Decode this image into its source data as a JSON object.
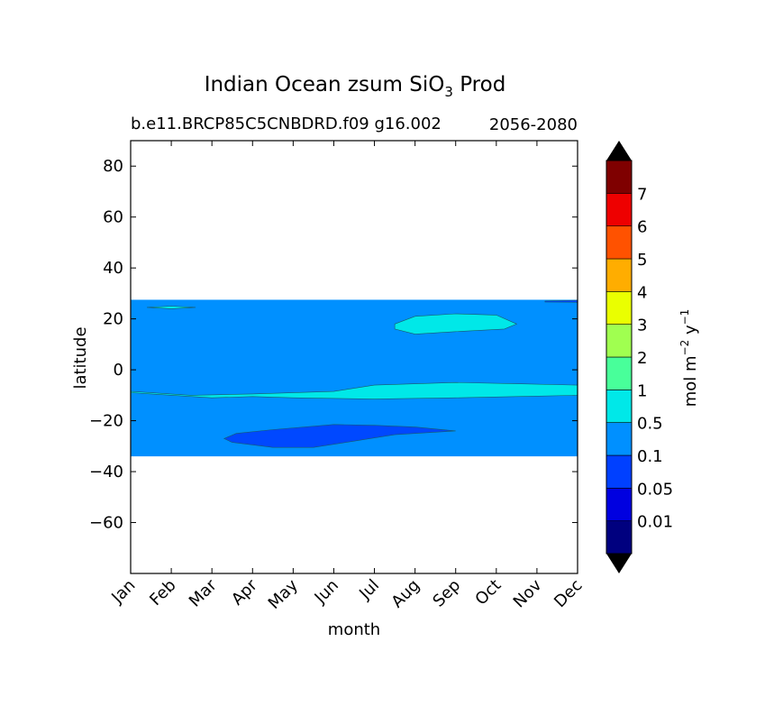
{
  "chart_data": {
    "type": "heatmap",
    "title": "Indian Ocean zsum SiO",
    "title_sub": "3",
    "title_rest": " Prod",
    "subtitle_left": "b.e11.BRCP85C5CNBDRD.f09 g16.002",
    "subtitle_right": "2056-2080",
    "xlabel": "month",
    "ylabel": "latitude",
    "x_ticks": [
      "Jan",
      "Feb",
      "Mar",
      "Apr",
      "May",
      "Jun",
      "Jul",
      "Aug",
      "Sep",
      "Oct",
      "Nov",
      "Dec"
    ],
    "xlim": [
      1,
      12
    ],
    "ylim": [
      -80,
      90
    ],
    "y_ticks": [
      80,
      60,
      40,
      20,
      0,
      -20,
      -40,
      -60
    ],
    "y_tick_labels": [
      "80",
      "60",
      "40",
      "20",
      "0",
      "−20",
      "−40",
      "−60"
    ],
    "grid": false,
    "data_lat_range": [
      -34,
      27.5
    ],
    "background_value": "0.1–0.5",
    "regions": [
      {
        "name": "band-0.5-1-equatorial",
        "level": "0.5–1",
        "color": "#00e8e8",
        "polygon": [
          [
            1,
            -8.5
          ],
          [
            2.5,
            -10
          ],
          [
            4,
            -9.5
          ],
          [
            6,
            -8.5
          ],
          [
            7,
            -6
          ],
          [
            9,
            -5
          ],
          [
            10.5,
            -5.5
          ],
          [
            12,
            -6
          ],
          [
            12,
            -10
          ],
          [
            10.5,
            -10.5
          ],
          [
            9,
            -11
          ],
          [
            7,
            -11.5
          ],
          [
            5,
            -11
          ],
          [
            4,
            -10.5
          ],
          [
            3,
            -11
          ],
          [
            1.5,
            -9.5
          ],
          [
            1,
            -9
          ]
        ]
      },
      {
        "name": "band-0.5-1-north",
        "level": "0.5–1",
        "color": "#00e8e8",
        "polygon": [
          [
            7.5,
            18
          ],
          [
            8,
            21
          ],
          [
            9,
            22
          ],
          [
            10,
            21.5
          ],
          [
            10.5,
            18
          ],
          [
            10.2,
            16
          ],
          [
            9,
            15
          ],
          [
            8,
            14
          ],
          [
            7.5,
            16
          ]
        ]
      },
      {
        "name": "band-0.5-1-small",
        "level": "0.5–1",
        "color": "#00e8e8",
        "polygon": [
          [
            1.4,
            24.5
          ],
          [
            2,
            25
          ],
          [
            2.6,
            24.5
          ],
          [
            2,
            24
          ]
        ]
      },
      {
        "name": "band-0.05-0.1-south",
        "level": "0.05–0.1",
        "color": "#0048ff",
        "polygon": [
          [
            3.3,
            -27
          ],
          [
            3.6,
            -25
          ],
          [
            4.5,
            -23.5
          ],
          [
            6,
            -21.5
          ],
          [
            7,
            -21.8
          ],
          [
            8,
            -22.5
          ],
          [
            9,
            -24
          ],
          [
            8.5,
            -24.5
          ],
          [
            7.5,
            -25.5
          ],
          [
            6.5,
            -28
          ],
          [
            5.5,
            -30.5
          ],
          [
            4.5,
            -30.5
          ],
          [
            3.5,
            -28.5
          ]
        ]
      },
      {
        "name": "band-0.05-0.1-edge",
        "level": "0.05–0.1",
        "color": "#0048ff",
        "polygon": [
          [
            11.2,
            27
          ],
          [
            12,
            27.3
          ],
          [
            12,
            26.5
          ],
          [
            11.2,
            26.6
          ]
        ]
      }
    ],
    "colorbar": {
      "label": "mol m",
      "label_exp1": "−2",
      "label_mid": " y",
      "label_exp2": "−1",
      "levels": [
        "0.01",
        "0.05",
        "0.1",
        "0.5",
        "1",
        "2",
        "3",
        "4",
        "5",
        "6",
        "7"
      ],
      "colors": [
        "#00007f",
        "#0000e0",
        "#0040ff",
        "#0090ff",
        "#00e8e8",
        "#48ff9a",
        "#a0ff50",
        "#eaff00",
        "#ffad00",
        "#ff5200",
        "#ee0000",
        "#7f0000"
      ],
      "extend": "both",
      "extend_color": "#000000"
    }
  }
}
